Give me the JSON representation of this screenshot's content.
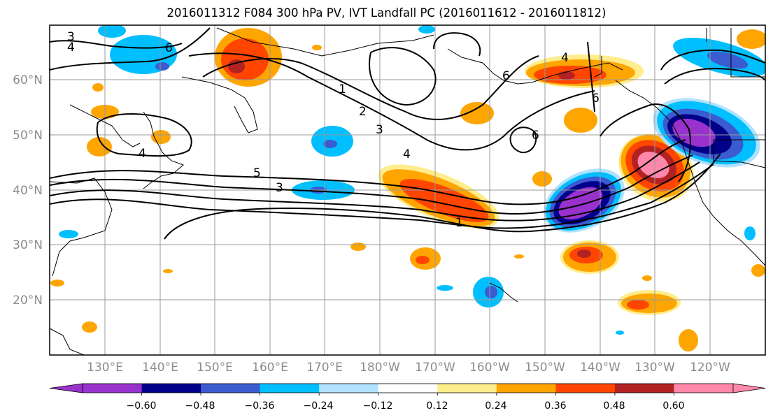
{
  "title": "2016011312 F084 300 hPa PV, IVT Landfall PC (2016011612 - 2016011812)",
  "lat_labels": [
    "60°N",
    "50°N",
    "40°N",
    "30°N",
    "20°N"
  ],
  "lon_labels": [
    "130°E",
    "140°E",
    "150°E",
    "160°E",
    "170°E",
    "180°W",
    "170°W",
    "160°W",
    "150°W",
    "140°W",
    "130°W",
    "120°W"
  ],
  "contour_labels": [
    "3",
    "4",
    "6",
    "1",
    "2",
    "3",
    "4",
    "5",
    "3",
    "4",
    "1",
    "4",
    "6",
    "6",
    "6"
  ],
  "colorbar": {
    "colors": [
      "#9932cc",
      "#00008b",
      "#3b5bd0",
      "#00bfff",
      "#b0e2ff",
      "#ffffff",
      "#ffec8b",
      "#ffa500",
      "#ff4500",
      "#b22222",
      "#ff88aa"
    ],
    "tick_labels": [
      "-0.60",
      "-0.48",
      "-0.36",
      "-0.24",
      "-0.12",
      "0.12",
      "0.24",
      "0.36",
      "0.48",
      "0.60"
    ]
  }
}
